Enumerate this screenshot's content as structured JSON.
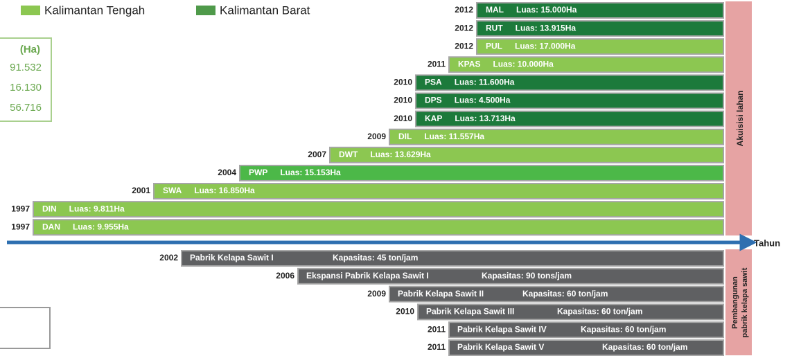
{
  "legend": [
    {
      "label": "Kalimantan Tengah",
      "color": "#8cc751"
    },
    {
      "label": "Kalimantan Barat",
      "color": "#4f9a4a"
    }
  ],
  "summary": {
    "unit": "(Ha)",
    "values": [
      "91.532",
      "16.130",
      "56.716"
    ]
  },
  "land": {
    "label": "Akuisisi lahan",
    "items": [
      {
        "year": 2012,
        "code": "MAL",
        "area": "Luas: 15.000Ha",
        "color": "#1c7a3b"
      },
      {
        "year": 2012,
        "code": "RUT",
        "area": "Luas: 13.915Ha",
        "color": "#1c7a3b"
      },
      {
        "year": 2012,
        "code": "PUL",
        "area": "Luas: 17.000Ha",
        "color": "#8cc751"
      },
      {
        "year": 2011,
        "code": "KPAS",
        "area": "Luas: 10.000Ha",
        "color": "#8cc751"
      },
      {
        "year": 2010,
        "code": "PSA",
        "area": "Luas: 11.600Ha",
        "color": "#1c7a3b"
      },
      {
        "year": 2010,
        "code": "DPS",
        "area": "Luas: 4.500Ha",
        "color": "#1c7a3b"
      },
      {
        "year": 2010,
        "code": "KAP",
        "area": "Luas: 13.713Ha",
        "color": "#1c7a3b"
      },
      {
        "year": 2009,
        "code": "DIL",
        "area": "Luas: 11.557Ha",
        "color": "#8cc751"
      },
      {
        "year": 2007,
        "code": "DWT",
        "area": "Luas: 13.629Ha",
        "color": "#8cc751"
      },
      {
        "year": 2004,
        "code": "PWP",
        "area": "Luas: 15.153Ha",
        "color": "#4cb848"
      },
      {
        "year": 2001,
        "code": "SWA",
        "area": "Luas: 16.850Ha",
        "color": "#8cc751"
      },
      {
        "year": 1997,
        "code": "DIN",
        "area": "Luas: 9.811Ha",
        "color": "#8cc751"
      },
      {
        "year": 1997,
        "code": "DAN",
        "area": "Luas: 9.955Ha",
        "color": "#8cc751"
      }
    ]
  },
  "axis": {
    "label": "Tahun"
  },
  "mills": {
    "label": [
      "Pembangunan",
      "pabrik kelapa sawit"
    ],
    "items": [
      {
        "year": 2002,
        "name": "Pabrik Kelapa Sawit I",
        "capacity": "Kapasitas: 45 ton/jam"
      },
      {
        "year": 2006,
        "name": "Ekspansi Pabrik Kelapa Sawit I",
        "capacity": "Kapasitas: 90 tons/jam"
      },
      {
        "year": 2009,
        "name": "Pabrik Kelapa Sawit II",
        "capacity": "Kapasitas: 60 ton/jam"
      },
      {
        "year": 2010,
        "name": "Pabrik Kelapa Sawit III",
        "capacity": "Kapasitas: 60 ton/jam"
      },
      {
        "year": 2011,
        "name": "Pabrik Kelapa Sawit IV",
        "capacity": "Kapasitas: 60 ton/jam"
      },
      {
        "year": 2011,
        "name": "Pabrik Kelapa Sawit V",
        "capacity": "Kapasitas: 60 ton/jam"
      }
    ]
  }
}
